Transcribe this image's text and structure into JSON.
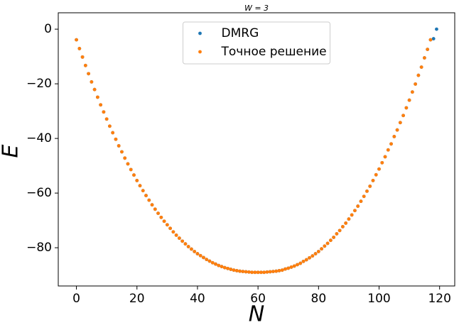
{
  "chart_data": {
    "type": "scatter",
    "title": "W = 3",
    "xlabel": "N",
    "ylabel": "E",
    "xlim": [
      -6,
      125
    ],
    "ylim": [
      -94,
      6
    ],
    "xticks": [
      0,
      20,
      40,
      60,
      80,
      100,
      120
    ],
    "yticks": [
      0,
      {
        "value": -20,
        "label": "−20"
      },
      {
        "value": -40,
        "label": "−40"
      },
      {
        "value": -60,
        "label": "−60"
      },
      {
        "value": -80,
        "label": "−80"
      }
    ],
    "legend": "upper center",
    "series": [
      {
        "name": "DMRG",
        "color": "#1f77b4",
        "x": [
          0,
          1,
          2,
          3,
          4,
          5,
          6,
          7,
          8,
          9,
          10,
          11,
          12,
          13,
          14,
          15,
          16,
          17,
          18,
          19,
          20,
          21,
          22,
          23,
          24,
          25,
          26,
          27,
          28,
          29,
          30,
          31,
          32,
          33,
          34,
          35,
          36,
          37,
          38,
          39,
          40,
          41,
          42,
          43,
          44,
          45,
          46,
          47,
          48,
          49,
          50,
          51,
          52,
          53,
          54,
          55,
          56,
          57,
          58,
          59,
          60,
          61,
          62,
          63,
          64,
          65,
          66,
          67,
          68,
          69,
          70,
          71,
          72,
          73,
          74,
          75,
          76,
          77,
          78,
          79,
          80,
          81,
          82,
          83,
          84,
          85,
          86,
          87,
          88,
          89,
          90,
          91,
          92,
          93,
          94,
          95,
          96,
          97,
          98,
          99,
          100,
          101,
          102,
          103,
          104,
          105,
          106,
          107,
          108,
          109,
          110,
          111,
          112,
          113,
          114,
          115,
          116,
          117,
          118,
          119
        ],
        "values": [
          -3.9,
          -7.1,
          -10.2,
          -13.3,
          -16.3,
          -19.3,
          -22.1,
          -24.9,
          -27.7,
          -30.3,
          -32.9,
          -35.5,
          -37.9,
          -40.3,
          -42.7,
          -44.9,
          -47.2,
          -49.3,
          -51.4,
          -53.4,
          -55.4,
          -57.3,
          -59.1,
          -60.9,
          -62.6,
          -64.3,
          -65.9,
          -67.4,
          -68.9,
          -70.3,
          -71.6,
          -72.9,
          -74.2,
          -75.4,
          -76.5,
          -77.6,
          -78.6,
          -79.6,
          -80.5,
          -81.4,
          -82.2,
          -82.9,
          -83.6,
          -84.3,
          -84.9,
          -85.5,
          -86.0,
          -86.5,
          -86.9,
          -87.3,
          -87.6,
          -87.9,
          -88.2,
          -88.4,
          -88.6,
          -88.7,
          -88.8,
          -88.9,
          -89.0,
          -89.0,
          -89.0,
          -89.0,
          -89.0,
          -88.9,
          -88.8,
          -88.7,
          -88.6,
          -88.4,
          -88.2,
          -87.8,
          -87.5,
          -87.1,
          -86.7,
          -86.2,
          -85.7,
          -85.0,
          -84.4,
          -83.7,
          -83.0,
          -82.2,
          -81.4,
          -80.4,
          -79.4,
          -78.4,
          -77.3,
          -76.2,
          -74.9,
          -73.7,
          -72.3,
          -71.0,
          -69.5,
          -68.0,
          -66.4,
          -64.8,
          -63.0,
          -61.2,
          -59.3,
          -57.5,
          -55.4,
          -53.3,
          -51.2,
          -48.9,
          -46.7,
          -44.2,
          -42.0,
          -39.3,
          -36.9,
          -34.2,
          -31.6,
          -28.8,
          -26.0,
          -23.0,
          -20.1,
          -16.9,
          -13.9,
          -10.5,
          -7.4,
          -3.9,
          -3.5,
          0
        ]
      },
      {
        "name": "Точное решение",
        "color": "#ff7f0e",
        "x": [
          0,
          1,
          2,
          3,
          4,
          5,
          6,
          7,
          8,
          9,
          10,
          11,
          12,
          13,
          14,
          15,
          16,
          17,
          18,
          19,
          20,
          21,
          22,
          23,
          24,
          25,
          26,
          27,
          28,
          29,
          30,
          31,
          32,
          33,
          34,
          35,
          36,
          37,
          38,
          39,
          40,
          41,
          42,
          43,
          44,
          45,
          46,
          47,
          48,
          49,
          50,
          51,
          52,
          53,
          54,
          55,
          56,
          57,
          58,
          59,
          60,
          61,
          62,
          63,
          64,
          65,
          66,
          67,
          68,
          69,
          70,
          71,
          72,
          73,
          74,
          75,
          76,
          77,
          78,
          79,
          80,
          81,
          82,
          83,
          84,
          85,
          86,
          87,
          88,
          89,
          90,
          91,
          92,
          93,
          94,
          95,
          96,
          97,
          98,
          99,
          100,
          101,
          102,
          103,
          104,
          105,
          106,
          107,
          108,
          109,
          110,
          111,
          112,
          113,
          114,
          115,
          116,
          117
        ],
        "values": [
          -3.9,
          -7.1,
          -10.2,
          -13.3,
          -16.3,
          -19.3,
          -22.1,
          -24.9,
          -27.7,
          -30.3,
          -32.9,
          -35.5,
          -37.9,
          -40.3,
          -42.7,
          -44.9,
          -47.2,
          -49.3,
          -51.4,
          -53.4,
          -55.4,
          -57.3,
          -59.1,
          -60.9,
          -62.6,
          -64.3,
          -65.9,
          -67.4,
          -68.9,
          -70.3,
          -71.6,
          -72.9,
          -74.2,
          -75.4,
          -76.5,
          -77.6,
          -78.6,
          -79.6,
          -80.5,
          -81.4,
          -82.2,
          -82.9,
          -83.6,
          -84.3,
          -84.9,
          -85.5,
          -86.0,
          -86.5,
          -86.9,
          -87.3,
          -87.6,
          -87.9,
          -88.2,
          -88.4,
          -88.6,
          -88.7,
          -88.8,
          -88.9,
          -89.0,
          -89.0,
          -89.0,
          -89.0,
          -89.0,
          -88.9,
          -88.8,
          -88.7,
          -88.6,
          -88.4,
          -88.2,
          -87.8,
          -87.5,
          -87.1,
          -86.7,
          -86.2,
          -85.7,
          -85.0,
          -84.4,
          -83.7,
          -83.0,
          -82.2,
          -81.4,
          -80.4,
          -79.4,
          -78.4,
          -77.3,
          -76.2,
          -74.9,
          -73.7,
          -72.3,
          -71.0,
          -69.5,
          -68.0,
          -66.4,
          -64.8,
          -63.0,
          -61.2,
          -59.3,
          -57.5,
          -55.4,
          -53.3,
          -51.2,
          -48.9,
          -46.7,
          -44.2,
          -42.0,
          -39.3,
          -36.9,
          -34.2,
          -31.6,
          -28.8,
          -26.0,
          -23.0,
          -20.1,
          -16.9,
          -13.9,
          -10.5,
          -7.4,
          -3.9
        ]
      }
    ]
  }
}
